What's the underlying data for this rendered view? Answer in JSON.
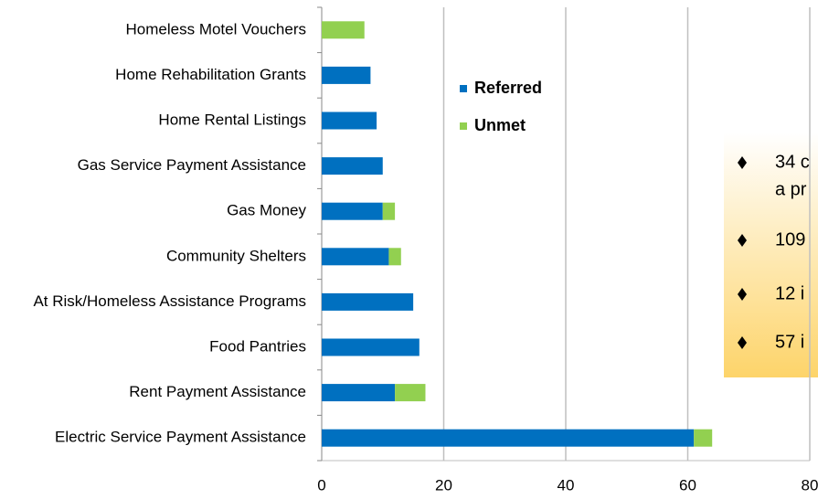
{
  "chart_data": {
    "type": "bar",
    "orientation": "horizontal",
    "stacked": true,
    "categories": [
      "Homeless Motel Vouchers",
      "Home Rehabilitation Grants",
      "Home Rental Listings",
      "Gas Service Payment Assistance",
      "Gas Money",
      "Community Shelters",
      "At Risk/Homeless Assistance Programs",
      "Food Pantries",
      "Rent Payment Assistance",
      "Electric Service Payment Assistance"
    ],
    "series": [
      {
        "name": "Referred",
        "color": "#0070c0",
        "values": [
          0,
          8,
          9,
          10,
          10,
          11,
          15,
          16,
          12,
          61
        ]
      },
      {
        "name": "Unmet",
        "color": "#92d050",
        "values": [
          7,
          0,
          0,
          0,
          2,
          2,
          0,
          0,
          5,
          3
        ]
      }
    ],
    "xlim": [
      0,
      80
    ],
    "xticks": [
      0,
      20,
      40,
      60,
      80
    ],
    "grid": true,
    "annotations": [
      "34 c",
      "a pr",
      "109",
      "12 i",
      "57 i"
    ]
  }
}
